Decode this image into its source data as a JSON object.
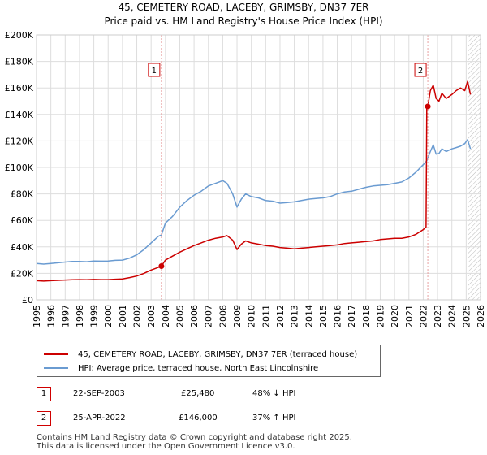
{
  "header": {
    "title_line1": "45, CEMETERY ROAD, LACEBY, GRIMSBY, DN37 7ER",
    "title_line2": "Price paid vs. HM Land Registry's House Price Index (HPI)"
  },
  "colors": {
    "price": "#cc0000",
    "hpi": "#6a9bd1",
    "grid": "#dddddd",
    "marker_line": "#e8a0a0",
    "hatch": "#bbbbbb"
  },
  "chart_data": {
    "type": "line",
    "title": "45, CEMETERY ROAD, LACEBY, GRIMSBY, DN37 7ER — Price paid vs. HM Land Registry's House Price Index (HPI)",
    "xlabel": "",
    "ylabel": "",
    "xlim": [
      1995,
      2026
    ],
    "ylim": [
      0,
      200000
    ],
    "y_ticks": [
      0,
      20000,
      40000,
      60000,
      80000,
      100000,
      120000,
      140000,
      160000,
      180000,
      200000
    ],
    "y_tick_labels": [
      "£0",
      "£20K",
      "£40K",
      "£60K",
      "£80K",
      "£100K",
      "£120K",
      "£140K",
      "£160K",
      "£180K",
      "£200K"
    ],
    "x_ticks": [
      1995,
      1996,
      1997,
      1998,
      1999,
      2000,
      2001,
      2002,
      2003,
      2004,
      2005,
      2006,
      2007,
      2008,
      2009,
      2010,
      2011,
      2012,
      2013,
      2014,
      2015,
      2016,
      2017,
      2018,
      2019,
      2020,
      2021,
      2022,
      2023,
      2024,
      2025,
      2026
    ],
    "grid": true,
    "future_hatch_from": 2025.1,
    "series": [
      {
        "name": "45, CEMETERY ROAD, LACEBY, GRIMSBY, DN37 7ER (terraced house)",
        "color": "#cc0000",
        "x": [
          1995,
          1995.5,
          1996,
          1996.5,
          1997,
          1997.5,
          1998,
          1998.5,
          1999,
          1999.5,
          2000,
          2000.5,
          2001,
          2001.5,
          2002,
          2002.5,
          2003,
          2003.5,
          2003.72,
          2004,
          2004.5,
          2005,
          2005.5,
          2006,
          2006.5,
          2007,
          2007.5,
          2008,
          2008.3,
          2008.7,
          2009,
          2009.3,
          2009.6,
          2010,
          2010.5,
          2011,
          2011.5,
          2012,
          2012.5,
          2013,
          2013.5,
          2014,
          2014.5,
          2015,
          2015.5,
          2016,
          2016.5,
          2017,
          2017.5,
          2018,
          2018.5,
          2019,
          2019.5,
          2020,
          2020.5,
          2021,
          2021.5,
          2022,
          2022.2,
          2022.25,
          2022.32,
          2022.5,
          2022.7,
          2022.9,
          2023.1,
          2023.3,
          2023.6,
          2024,
          2024.3,
          2024.6,
          2024.9,
          2025.1,
          2025.3
        ],
        "values": [
          14500,
          14200,
          14500,
          14700,
          15000,
          15200,
          15300,
          15200,
          15400,
          15300,
          15300,
          15600,
          15800,
          16800,
          18000,
          20000,
          22500,
          24500,
          25480,
          30000,
          33000,
          36000,
          38500,
          41000,
          43000,
          45000,
          46500,
          47500,
          48500,
          45000,
          38000,
          42000,
          44500,
          43000,
          42000,
          41000,
          40500,
          39500,
          39000,
          38500,
          39000,
          39500,
          40000,
          40500,
          41000,
          41500,
          42500,
          43000,
          43500,
          44000,
          44500,
          45500,
          46000,
          46500,
          46500,
          47500,
          49500,
          53000,
          55000,
          146000,
          146000,
          158000,
          162000,
          152000,
          150000,
          156000,
          152000,
          155000,
          158000,
          160000,
          158000,
          165000,
          155000
        ]
      },
      {
        "name": "HPI: Average price, terraced house, North East Lincolnshire",
        "color": "#6a9bd1",
        "x": [
          1995,
          1995.5,
          1996,
          1996.5,
          1997,
          1997.5,
          1998,
          1998.5,
          1999,
          1999.5,
          2000,
          2000.5,
          2001,
          2001.5,
          2002,
          2002.5,
          2003,
          2003.5,
          2003.72,
          2004,
          2004.5,
          2005,
          2005.5,
          2006,
          2006.5,
          2007,
          2007.5,
          2008,
          2008.3,
          2008.7,
          2009,
          2009.3,
          2009.6,
          2010,
          2010.5,
          2011,
          2011.5,
          2012,
          2012.5,
          2013,
          2013.5,
          2014,
          2014.5,
          2015,
          2015.5,
          2016,
          2016.5,
          2017,
          2017.5,
          2018,
          2018.5,
          2019,
          2019.5,
          2020,
          2020.5,
          2021,
          2021.5,
          2022,
          2022.25,
          2022.5,
          2022.7,
          2022.9,
          2023.1,
          2023.3,
          2023.6,
          2024,
          2024.3,
          2024.6,
          2024.9,
          2025.1,
          2025.3
        ],
        "values": [
          27500,
          27000,
          27500,
          28000,
          28500,
          29000,
          29000,
          28800,
          29300,
          29200,
          29300,
          29800,
          30000,
          31500,
          34000,
          38000,
          43000,
          48000,
          49000,
          58000,
          63000,
          70000,
          75000,
          79000,
          82000,
          86000,
          88000,
          90000,
          88000,
          80000,
          70000,
          76000,
          80000,
          78000,
          77000,
          75000,
          74500,
          73000,
          73500,
          74000,
          75000,
          76000,
          76500,
          77000,
          78000,
          80000,
          81500,
          82000,
          83500,
          85000,
          86000,
          86500,
          87000,
          88000,
          89000,
          92000,
          96500,
          102000,
          105000,
          112000,
          117000,
          110000,
          110500,
          114000,
          112000,
          114000,
          115000,
          116000,
          118000,
          121000,
          114000
        ]
      }
    ],
    "annotations": [
      {
        "label": "1",
        "x": 2003.72,
        "price": 25480
      },
      {
        "label": "2",
        "x": 2022.32,
        "price": 146000
      }
    ]
  },
  "legend": {
    "items": [
      {
        "label": "45, CEMETERY ROAD, LACEBY, GRIMSBY, DN37 7ER (terraced house)"
      },
      {
        "label": "HPI: Average price, terraced house, North East Lincolnshire"
      }
    ]
  },
  "transactions": [
    {
      "num": "1",
      "date": "22-SEP-2003",
      "price": "£25,480",
      "change": "48% ↓ HPI"
    },
    {
      "num": "2",
      "date": "25-APR-2022",
      "price": "£146,000",
      "change": "37% ↑ HPI"
    }
  ],
  "footer": {
    "line1": "Contains HM Land Registry data © Crown copyright and database right 2025.",
    "line2": "This data is licensed under the Open Government Licence v3.0."
  }
}
